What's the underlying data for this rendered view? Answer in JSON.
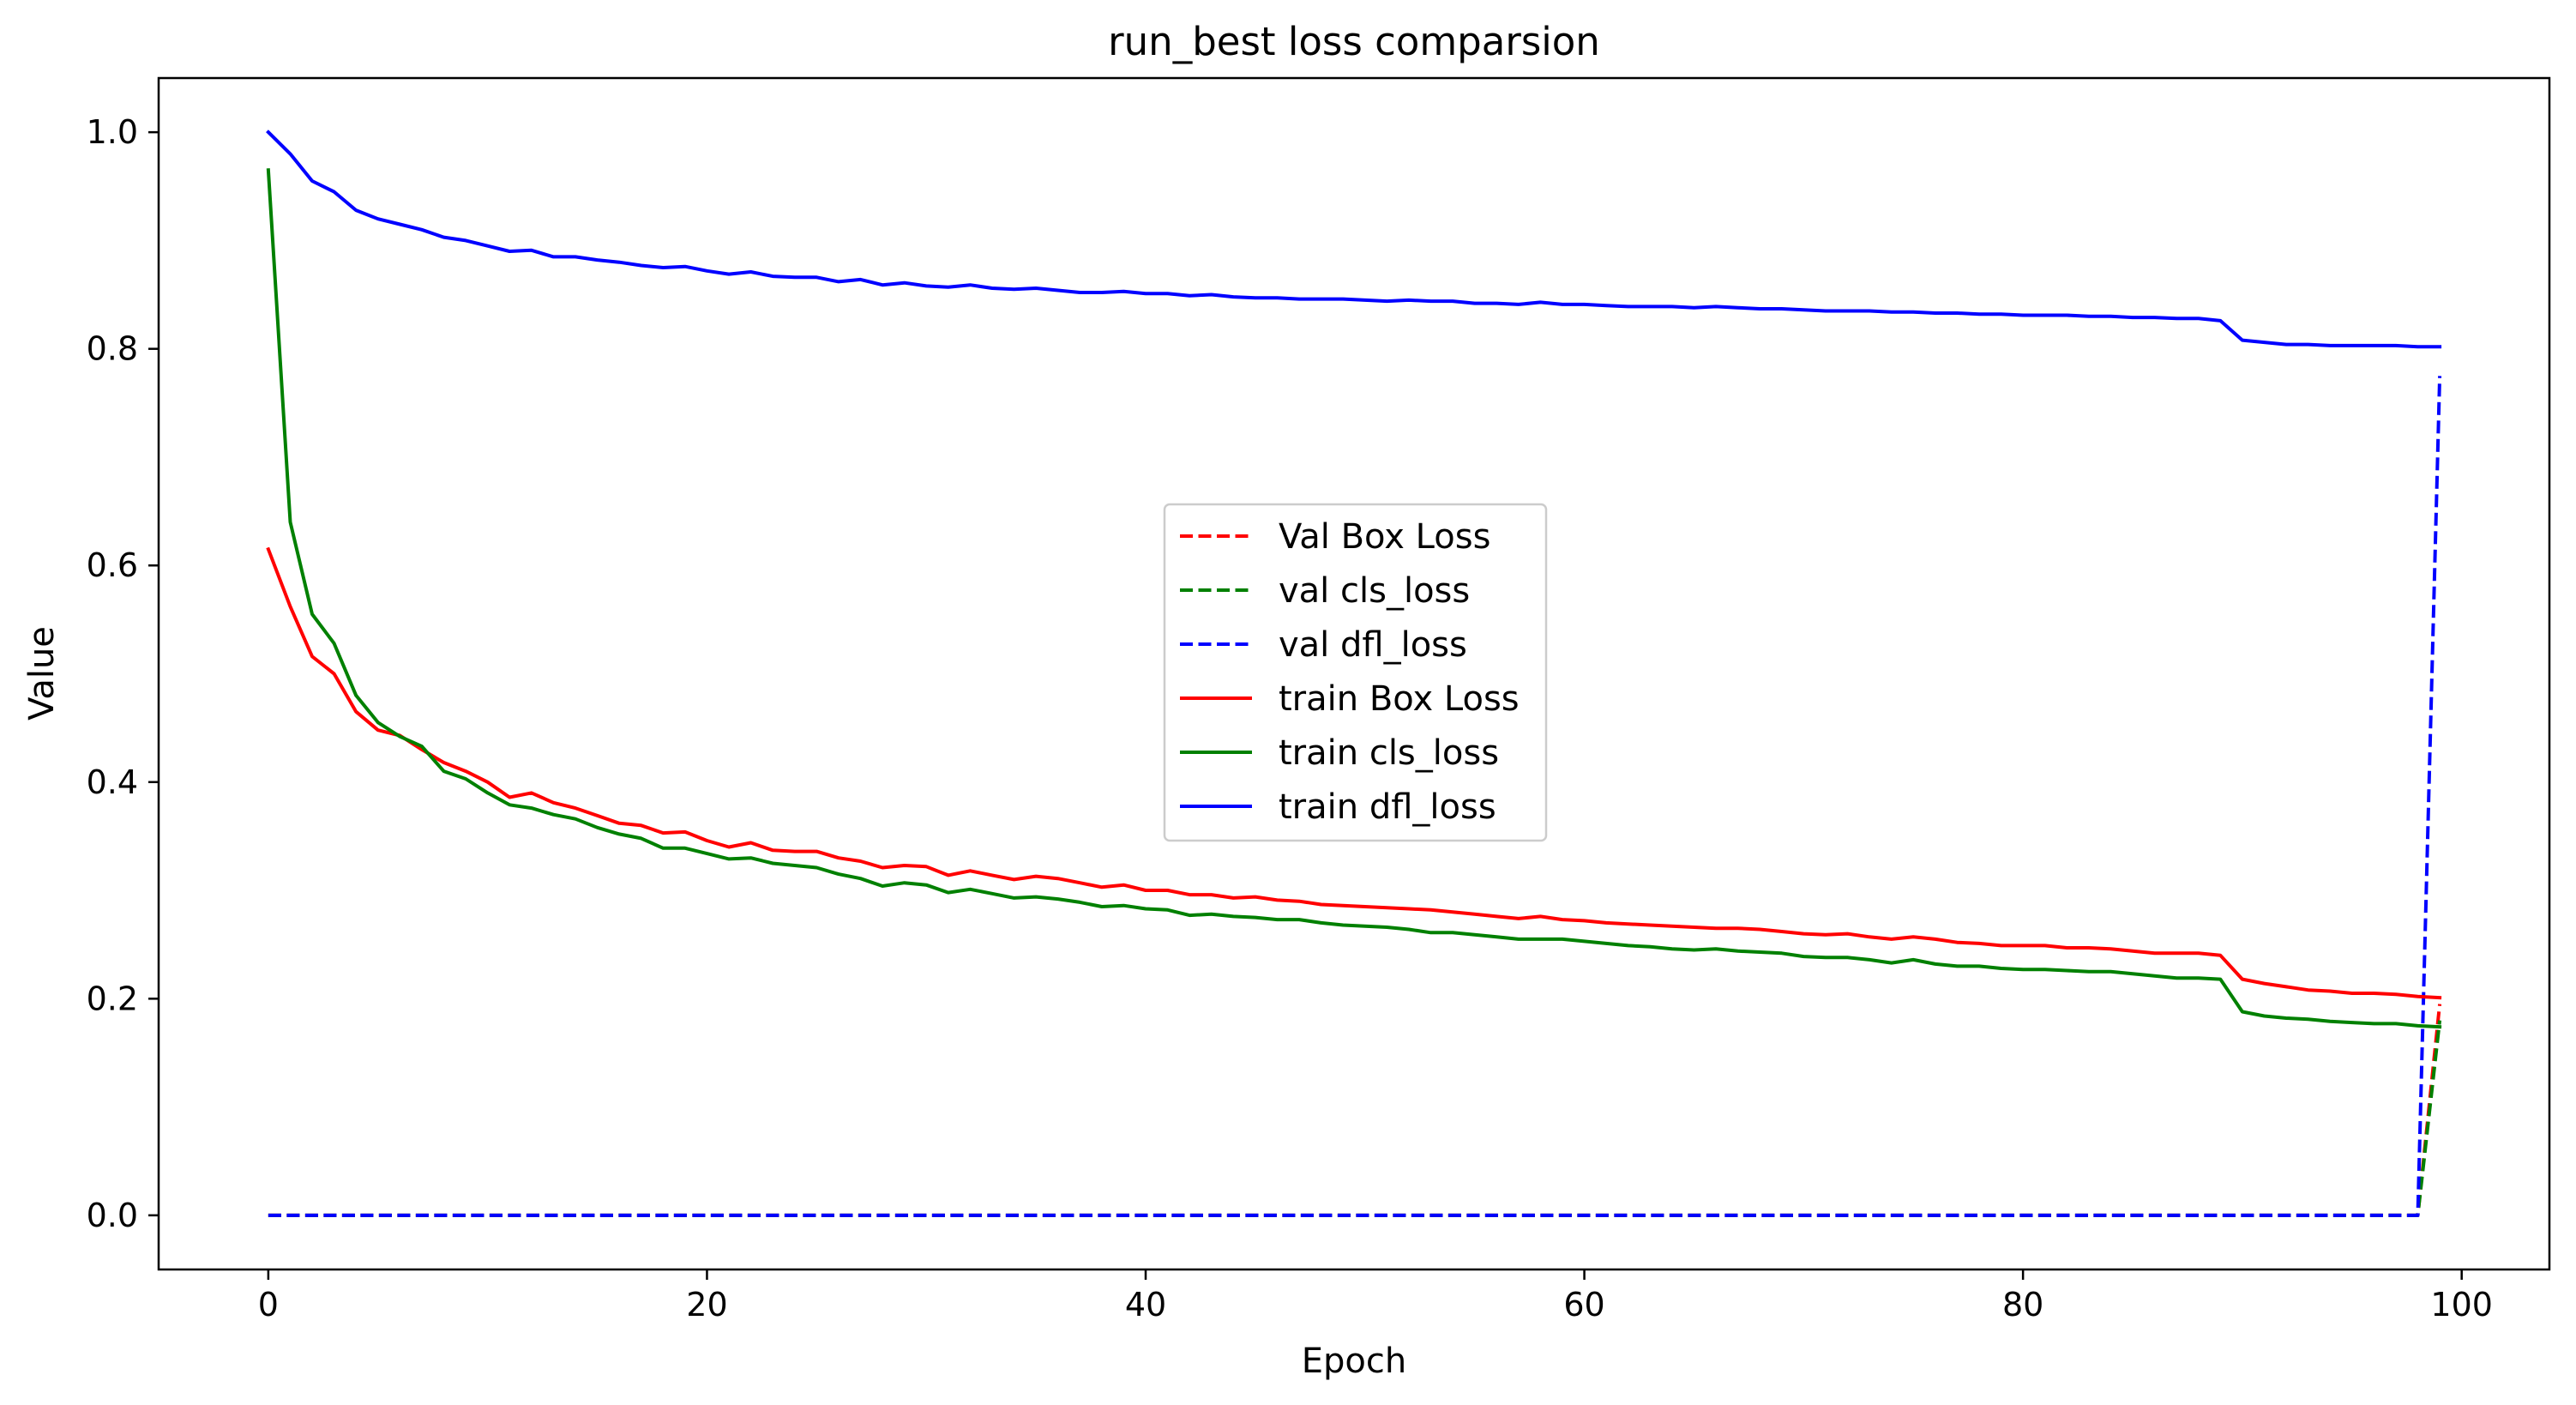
{
  "chart_data": {
    "type": "line",
    "title": "run_best loss comparsion",
    "xlabel": "Epoch",
    "ylabel": "Value",
    "xlim": [
      -5,
      104
    ],
    "ylim": [
      -0.05,
      1.05
    ],
    "xticks": [
      0,
      20,
      40,
      60,
      80,
      100
    ],
    "yticks": [
      0.0,
      0.2,
      0.4,
      0.6,
      0.8,
      1.0
    ],
    "xtick_labels": [
      "0",
      "20",
      "40",
      "60",
      "80",
      "100"
    ],
    "ytick_labels": [
      "0.0",
      "0.2",
      "0.4",
      "0.6",
      "0.8",
      "1.0"
    ],
    "grid": false,
    "legend_position": "center",
    "x": [
      0,
      1,
      2,
      3,
      4,
      5,
      6,
      7,
      8,
      9,
      10,
      11,
      12,
      13,
      14,
      15,
      16,
      17,
      18,
      19,
      20,
      21,
      22,
      23,
      24,
      25,
      26,
      27,
      28,
      29,
      30,
      31,
      32,
      33,
      34,
      35,
      36,
      37,
      38,
      39,
      40,
      41,
      42,
      43,
      44,
      45,
      46,
      47,
      48,
      49,
      50,
      51,
      52,
      53,
      54,
      55,
      56,
      57,
      58,
      59,
      60,
      61,
      62,
      63,
      64,
      65,
      66,
      67,
      68,
      69,
      70,
      71,
      72,
      73,
      74,
      75,
      76,
      77,
      78,
      79,
      80,
      81,
      82,
      83,
      84,
      85,
      86,
      87,
      88,
      89,
      90,
      91,
      92,
      93,
      94,
      95,
      96,
      97,
      98,
      99
    ],
    "series": [
      {
        "name": "Val Box Loss",
        "color": "#ff0000",
        "style": "dashed",
        "values": [
          0,
          0,
          0,
          0,
          0,
          0,
          0,
          0,
          0,
          0,
          0,
          0,
          0,
          0,
          0,
          0,
          0,
          0,
          0,
          0,
          0,
          0,
          0,
          0,
          0,
          0,
          0,
          0,
          0,
          0,
          0,
          0,
          0,
          0,
          0,
          0,
          0,
          0,
          0,
          0,
          0,
          0,
          0,
          0,
          0,
          0,
          0,
          0,
          0,
          0,
          0,
          0,
          0,
          0,
          0,
          0,
          0,
          0,
          0,
          0,
          0,
          0,
          0,
          0,
          0,
          0,
          0,
          0,
          0,
          0,
          0,
          0,
          0,
          0,
          0,
          0,
          0,
          0,
          0,
          0,
          0,
          0,
          0,
          0,
          0,
          0,
          0,
          0,
          0,
          0,
          0,
          0,
          0,
          0,
          0,
          0,
          0,
          0,
          0,
          0.195
        ]
      },
      {
        "name": "val cls_loss",
        "color": "#008000",
        "style": "dashed",
        "values": [
          0,
          0,
          0,
          0,
          0,
          0,
          0,
          0,
          0,
          0,
          0,
          0,
          0,
          0,
          0,
          0,
          0,
          0,
          0,
          0,
          0,
          0,
          0,
          0,
          0,
          0,
          0,
          0,
          0,
          0,
          0,
          0,
          0,
          0,
          0,
          0,
          0,
          0,
          0,
          0,
          0,
          0,
          0,
          0,
          0,
          0,
          0,
          0,
          0,
          0,
          0,
          0,
          0,
          0,
          0,
          0,
          0,
          0,
          0,
          0,
          0,
          0,
          0,
          0,
          0,
          0,
          0,
          0,
          0,
          0,
          0,
          0,
          0,
          0,
          0,
          0,
          0,
          0,
          0,
          0,
          0,
          0,
          0,
          0,
          0,
          0,
          0,
          0,
          0,
          0,
          0,
          0,
          0,
          0,
          0,
          0,
          0,
          0,
          0,
          0.18
        ]
      },
      {
        "name": "val dfl_loss",
        "color": "#0000ff",
        "style": "dashed",
        "values": [
          0,
          0,
          0,
          0,
          0,
          0,
          0,
          0,
          0,
          0,
          0,
          0,
          0,
          0,
          0,
          0,
          0,
          0,
          0,
          0,
          0,
          0,
          0,
          0,
          0,
          0,
          0,
          0,
          0,
          0,
          0,
          0,
          0,
          0,
          0,
          0,
          0,
          0,
          0,
          0,
          0,
          0,
          0,
          0,
          0,
          0,
          0,
          0,
          0,
          0,
          0,
          0,
          0,
          0,
          0,
          0,
          0,
          0,
          0,
          0,
          0,
          0,
          0,
          0,
          0,
          0,
          0,
          0,
          0,
          0,
          0,
          0,
          0,
          0,
          0,
          0,
          0,
          0,
          0,
          0,
          0,
          0,
          0,
          0,
          0,
          0,
          0,
          0,
          0,
          0,
          0,
          0,
          0,
          0,
          0,
          0,
          0,
          0,
          0,
          0.775
        ]
      },
      {
        "name": "train Box Loss",
        "color": "#ff0000",
        "style": "solid",
        "values": [
          0.615,
          0.562,
          0.516,
          0.5,
          0.465,
          0.448,
          0.443,
          0.43,
          0.418,
          0.41,
          0.4,
          0.386,
          0.39,
          0.381,
          0.376,
          0.369,
          0.362,
          0.36,
          0.353,
          0.354,
          0.346,
          0.34,
          0.344,
          0.337,
          0.336,
          0.336,
          0.33,
          0.327,
          0.321,
          0.323,
          0.322,
          0.314,
          0.318,
          0.314,
          0.31,
          0.313,
          0.311,
          0.307,
          0.303,
          0.305,
          0.3,
          0.3,
          0.296,
          0.296,
          0.293,
          0.294,
          0.291,
          0.29,
          0.287,
          0.286,
          0.285,
          0.284,
          0.283,
          0.282,
          0.28,
          0.278,
          0.276,
          0.274,
          0.276,
          0.273,
          0.272,
          0.27,
          0.269,
          0.268,
          0.267,
          0.266,
          0.265,
          0.265,
          0.264,
          0.262,
          0.26,
          0.259,
          0.26,
          0.257,
          0.255,
          0.257,
          0.255,
          0.252,
          0.251,
          0.249,
          0.249,
          0.249,
          0.247,
          0.247,
          0.246,
          0.244,
          0.242,
          0.242,
          0.242,
          0.24,
          0.218,
          0.214,
          0.211,
          0.208,
          0.207,
          0.205,
          0.205,
          0.204,
          0.202,
          0.201
        ]
      },
      {
        "name": "train cls_loss",
        "color": "#008000",
        "style": "solid",
        "values": [
          0.965,
          0.64,
          0.555,
          0.528,
          0.48,
          0.455,
          0.442,
          0.433,
          0.41,
          0.403,
          0.39,
          0.379,
          0.376,
          0.37,
          0.366,
          0.358,
          0.352,
          0.348,
          0.339,
          0.339,
          0.334,
          0.329,
          0.33,
          0.325,
          0.323,
          0.321,
          0.315,
          0.311,
          0.304,
          0.307,
          0.305,
          0.298,
          0.301,
          0.297,
          0.293,
          0.294,
          0.292,
          0.289,
          0.285,
          0.286,
          0.283,
          0.282,
          0.277,
          0.278,
          0.276,
          0.275,
          0.273,
          0.273,
          0.27,
          0.268,
          0.267,
          0.266,
          0.264,
          0.261,
          0.261,
          0.259,
          0.257,
          0.255,
          0.255,
          0.255,
          0.253,
          0.251,
          0.249,
          0.248,
          0.246,
          0.245,
          0.246,
          0.244,
          0.243,
          0.242,
          0.239,
          0.238,
          0.238,
          0.236,
          0.233,
          0.236,
          0.232,
          0.23,
          0.23,
          0.228,
          0.227,
          0.227,
          0.226,
          0.225,
          0.225,
          0.223,
          0.221,
          0.219,
          0.219,
          0.218,
          0.188,
          0.184,
          0.182,
          0.181,
          0.179,
          0.178,
          0.177,
          0.177,
          0.175,
          0.174
        ]
      },
      {
        "name": "train dfl_loss",
        "color": "#0000ff",
        "style": "solid",
        "values": [
          1.0,
          0.98,
          0.955,
          0.945,
          0.928,
          0.92,
          0.915,
          0.91,
          0.903,
          0.9,
          0.895,
          0.89,
          0.891,
          0.885,
          0.885,
          0.882,
          0.88,
          0.877,
          0.875,
          0.876,
          0.872,
          0.869,
          0.871,
          0.867,
          0.866,
          0.866,
          0.862,
          0.864,
          0.859,
          0.861,
          0.858,
          0.857,
          0.859,
          0.856,
          0.855,
          0.856,
          0.854,
          0.852,
          0.852,
          0.853,
          0.851,
          0.851,
          0.849,
          0.85,
          0.848,
          0.847,
          0.847,
          0.846,
          0.846,
          0.846,
          0.845,
          0.844,
          0.845,
          0.844,
          0.844,
          0.842,
          0.842,
          0.841,
          0.843,
          0.841,
          0.841,
          0.84,
          0.839,
          0.839,
          0.839,
          0.838,
          0.839,
          0.838,
          0.837,
          0.837,
          0.836,
          0.835,
          0.835,
          0.835,
          0.834,
          0.834,
          0.833,
          0.833,
          0.832,
          0.832,
          0.831,
          0.831,
          0.831,
          0.83,
          0.83,
          0.829,
          0.829,
          0.828,
          0.828,
          0.826,
          0.808,
          0.806,
          0.804,
          0.804,
          0.803,
          0.803,
          0.803,
          0.803,
          0.802,
          0.802
        ]
      }
    ],
    "val_jump_start_epoch": 98
  }
}
